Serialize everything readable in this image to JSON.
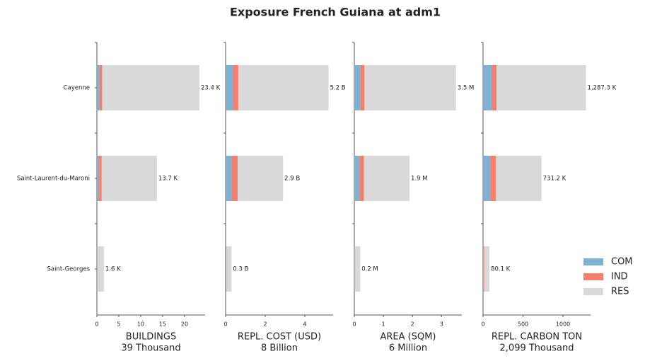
{
  "title": "Exposure French Guiana at adm1",
  "categories": [
    "Cayenne",
    "Saint-Laurent-du-Maroni",
    "Saint-Georges"
  ],
  "legend": [
    {
      "name": "COM",
      "color": "#7fb1d3"
    },
    {
      "name": "IND",
      "color": "#f47f6c"
    },
    {
      "name": "RES",
      "color": "#d9d9d9"
    }
  ],
  "chart_data": [
    {
      "type": "barh",
      "xlabel": "BUILDINGS",
      "xlabel_sub": "39 Thousand",
      "series": [
        {
          "values": [
            0.6,
            0.5,
            0.05
          ]
        },
        {
          "values": [
            0.6,
            0.6,
            0.05
          ]
        },
        {
          "values": [
            22.2,
            12.6,
            1.5
          ]
        }
      ],
      "totals": [
        23.4,
        13.7,
        1.6
      ],
      "total_labels": [
        "23.4 K",
        "13.7 K",
        "1.6 K"
      ],
      "xlim": [
        0,
        24.7
      ],
      "xticks": [
        0,
        5,
        10,
        15,
        20
      ]
    },
    {
      "type": "barh",
      "xlabel": "REPL. COST (USD)",
      "xlabel_sub": "8 Billion",
      "series": [
        {
          "values": [
            0.36,
            0.32,
            0.01
          ]
        },
        {
          "values": [
            0.28,
            0.29,
            0.03
          ]
        },
        {
          "values": [
            4.56,
            2.29,
            0.26
          ]
        }
      ],
      "totals": [
        5.2,
        2.9,
        0.3
      ],
      "total_labels": [
        "5.2 B",
        "2.9 B",
        "0.3 B"
      ],
      "xlim": [
        0,
        5.43
      ],
      "xticks": [
        0,
        2,
        4
      ]
    },
    {
      "type": "barh",
      "xlabel": "AREA (SQM)",
      "xlabel_sub": "6 Million",
      "series": [
        {
          "values": [
            0.2,
            0.18,
            0.005
          ]
        },
        {
          "values": [
            0.15,
            0.15,
            0.01
          ]
        },
        {
          "values": [
            3.15,
            1.57,
            0.185
          ]
        }
      ],
      "totals": [
        3.5,
        1.9,
        0.2
      ],
      "total_labels": [
        "3.5 M",
        "1.9 M",
        "0.2 M"
      ],
      "xlim": [
        0,
        3.7
      ],
      "xticks": [
        0,
        1,
        2,
        3
      ]
    },
    {
      "type": "barh",
      "xlabel": "REPL. CARBON TON",
      "xlabel_sub": "2,099 Thousand",
      "series": [
        {
          "values": [
            106,
            97,
            5
          ]
        },
        {
          "values": [
            62,
            62,
            10
          ]
        },
        {
          "values": [
            1119.3,
            572.2,
            65.1
          ]
        }
      ],
      "totals": [
        1287.3,
        731.2,
        80.1
      ],
      "total_labels": [
        "1,287.3 K",
        "731.2 K",
        "80.1 K"
      ],
      "xlim": [
        0,
        1345
      ],
      "xticks": [
        0,
        500,
        1000
      ]
    }
  ]
}
